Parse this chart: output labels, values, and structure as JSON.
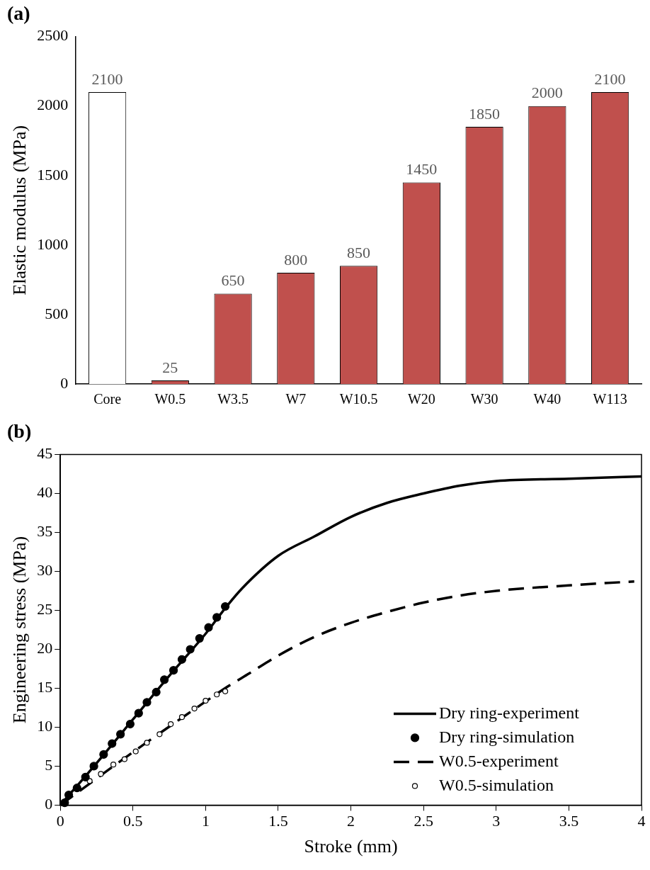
{
  "chart_data": [
    {
      "type": "bar",
      "title": "(a)",
      "ylabel": "Elastic modulus (MPa)",
      "categories": [
        "Core",
        "W0.5",
        "W3.5",
        "W7",
        "W10.5",
        "W20",
        "W30",
        "W40",
        "W113"
      ],
      "values": [
        2100,
        25,
        650,
        800,
        850,
        1450,
        1850,
        2000,
        2100
      ],
      "colors": [
        "#ffffff",
        "#c0504d",
        "#c0504d",
        "#c0504d",
        "#c0504d",
        "#c0504d",
        "#c0504d",
        "#c0504d",
        "#c0504d"
      ],
      "ylim": [
        0,
        2500
      ],
      "yticks": [
        0,
        500,
        1000,
        1500,
        2000,
        2500
      ],
      "grid": false,
      "legend": false,
      "data_labels": true
    },
    {
      "type": "line",
      "title": "(b)",
      "xlabel": "Stroke (mm)",
      "ylabel": "Engineering stress (MPa)",
      "xlim": [
        0,
        4
      ],
      "xticks": [
        0,
        0.5,
        1,
        1.5,
        2,
        2.5,
        3,
        3.5,
        4
      ],
      "ylim": [
        0,
        45
      ],
      "yticks": [
        0,
        5,
        10,
        15,
        20,
        25,
        30,
        35,
        40,
        45
      ],
      "grid": false,
      "legend": "bottom right",
      "series": [
        {
          "name": "Dry ring-experiment",
          "type": "line",
          "line_style": "solid",
          "marker": "none",
          "color": "#000000",
          "x": [
            0,
            0.25,
            0.5,
            0.75,
            1.0,
            1.14,
            1.25,
            1.5,
            1.75,
            2,
            2.25,
            2.5,
            2.75,
            3,
            3.5,
            4
          ],
          "values": [
            0,
            5.4,
            11.0,
            16.6,
            22.0,
            25.4,
            27.8,
            32.0,
            34.5,
            37.0,
            38.8,
            40.0,
            41.0,
            41.6,
            41.9,
            42.2
          ]
        },
        {
          "name": "Dry ring-simulation",
          "type": "scatter",
          "marker": "circle",
          "color": "#000000",
          "x": [
            0.03,
            0.058,
            0.115,
            0.173,
            0.231,
            0.298,
            0.356,
            0.414,
            0.481,
            0.539,
            0.596,
            0.66,
            0.716,
            0.779,
            0.837,
            0.894,
            0.958,
            1.02,
            1.077,
            1.135
          ],
          "values": [
            0.3,
            1.3,
            2.2,
            3.6,
            5.0,
            6.5,
            7.9,
            9.1,
            10.4,
            11.8,
            13.2,
            14.5,
            16.1,
            17.3,
            18.7,
            20.0,
            21.4,
            22.8,
            24.1,
            25.5
          ]
        },
        {
          "name": "W0.5-experiment",
          "type": "line",
          "line_style": "dashed",
          "marker": "none",
          "color": "#000000",
          "x": [
            0,
            0.5,
            1.0,
            1.15,
            1.3,
            1.5,
            1.75,
            2,
            2.25,
            2.5,
            2.75,
            3,
            3.25,
            3.5,
            3.75,
            3.95
          ],
          "values": [
            0,
            6.8,
            13.3,
            15.2,
            16.9,
            19.2,
            21.6,
            23.4,
            24.8,
            26.0,
            26.9,
            27.5,
            27.9,
            28.2,
            28.5,
            28.7
          ]
        },
        {
          "name": "W0.5-simulation",
          "type": "scatter",
          "marker": "circle",
          "color": "#ffffff",
          "x": [
            0.202,
            0.279,
            0.365,
            0.442,
            0.519,
            0.596,
            0.683,
            0.76,
            0.837,
            0.923,
            1.0,
            1.077,
            1.135
          ],
          "values": [
            3.1,
            4.0,
            5.2,
            5.9,
            6.9,
            8.0,
            9.1,
            10.4,
            11.3,
            12.4,
            13.4,
            14.2,
            14.6
          ]
        }
      ]
    }
  ]
}
